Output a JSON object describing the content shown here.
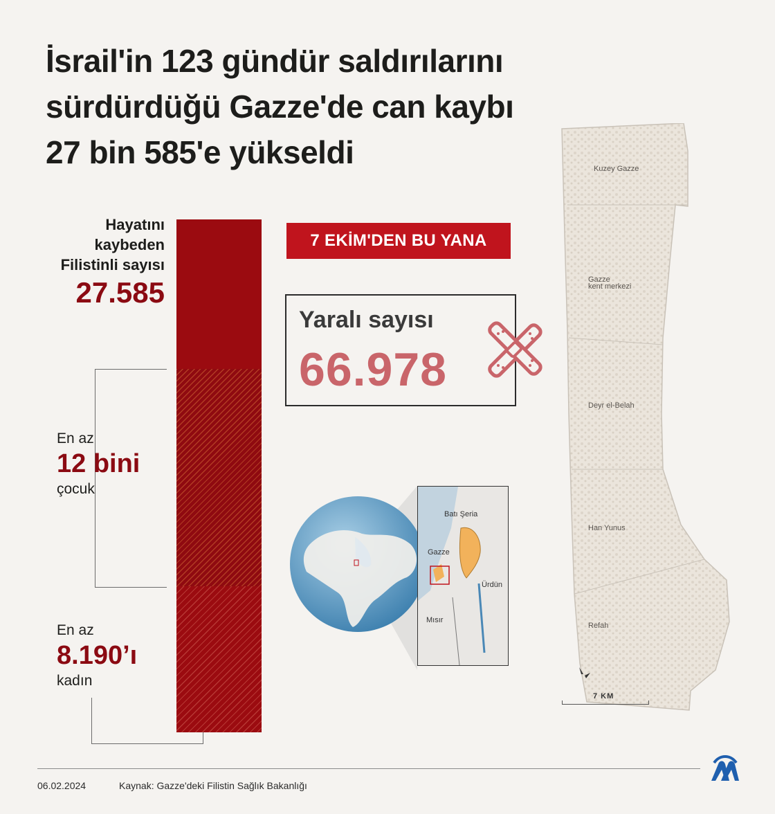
{
  "title": {
    "line1": "İsrail'in 123 gündür saldırılarını",
    "line2": "sürdürdüğü Gazze'de can kaybı",
    "line3": "27 bin 585'e yükseldi"
  },
  "killed": {
    "label_line1": "Hayatını",
    "label_line2": "kaybeden",
    "label_line3": "Filistinli sayısı",
    "value": "27.585"
  },
  "children": {
    "prefix": "En az",
    "value": "12 bini",
    "suffix": "çocuk"
  },
  "women": {
    "prefix": "En az",
    "value": "8.190’ı",
    "suffix": "kadın"
  },
  "banner": "7 EKİM'DEN  BU YANA",
  "injured": {
    "label": "Yaralı sayısı",
    "value": "66.978"
  },
  "map": {
    "places": [
      "Kuzey Gazze",
      "Gazze",
      "kent merkezi",
      "Deyr el-Belah",
      "Han Yunus",
      "Refah"
    ],
    "scale": "7 KM",
    "locator": {
      "west_bank": "Batı Şeria",
      "gaza": "Gazze",
      "jordan": "Ürdün",
      "egypt": "Mısır"
    }
  },
  "footer": {
    "date": "06.02.2024",
    "source": "Kaynak: Gazze'deki Filistin Sağlık Bakanlığı"
  },
  "colors": {
    "dark_red": "#9b0b10",
    "banner_red": "#c0141d",
    "injured_pink": "#c9656a",
    "logo_blue": "#1f5fae"
  },
  "icons": [
    "bandage-icon",
    "north-arrow-icon",
    "aa-logo-icon"
  ]
}
